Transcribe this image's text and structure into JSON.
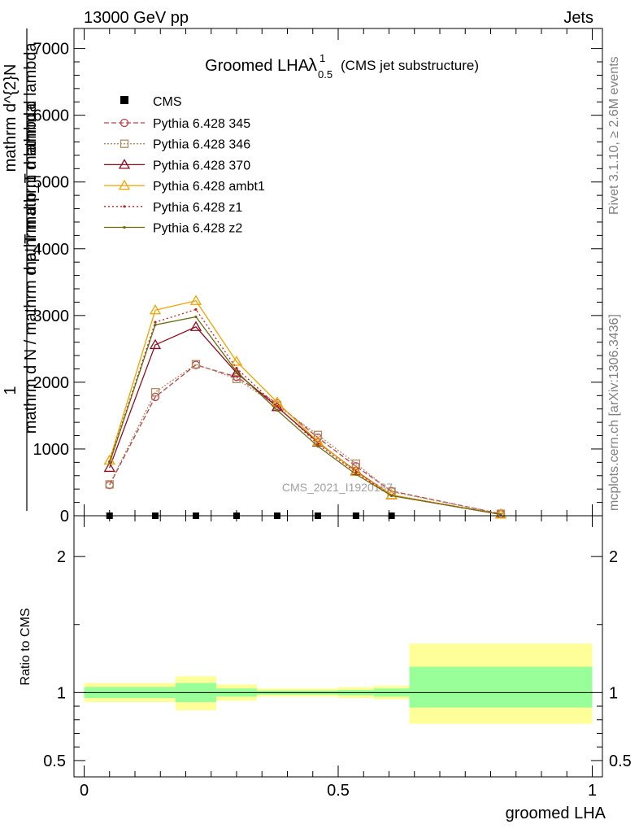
{
  "header": {
    "left": "13000 GeV pp",
    "right": "Jets"
  },
  "side_text": {
    "top": "Rivet 3.1.10, ≥ 2.6M events",
    "bottom": "mcplots.cern.ch [arXiv:1306.3436]"
  },
  "watermark": "CMS_2021_I1920187",
  "chart_data": [
    {
      "type": "line",
      "title": "Groomed LHA",
      "title_symbol": "λ",
      "title_sup": "1",
      "title_sub": "0.5",
      "subtitle": "(CMS jet substructure)",
      "ylabel_numerator": "1",
      "ylabel_line1": "mathrm d N / mathrm d p_T mathrm d lambda",
      "ylabel_line2": "mathrm d^{2}N",
      "ylabel_line3": "mathrm d p_T mathrm d lambda",
      "xlim": [
        0,
        1
      ],
      "ylim": [
        0,
        7300
      ],
      "yticks": [
        0,
        1000,
        2000,
        3000,
        4000,
        5000,
        6000,
        7000
      ],
      "ytick_labels": [
        "0",
        "1000",
        "2000",
        "3000",
        "4000",
        "5000",
        "6000",
        "7000"
      ],
      "data": {
        "name": "CMS",
        "x": [
          0.05,
          0.14,
          0.22,
          0.3,
          0.38,
          0.46,
          0.535,
          0.605
        ],
        "y": [
          0,
          0,
          0,
          0,
          0,
          0,
          0,
          0
        ]
      },
      "series": [
        {
          "name": "Pythia 6.428 345",
          "color": "#b4434b",
          "dash": "6,3",
          "marker": "circle",
          "x": [
            0.05,
            0.14,
            0.22,
            0.3,
            0.38,
            0.46,
            0.535,
            0.605,
            0.82
          ],
          "y": [
            460,
            1780,
            2260,
            2080,
            1680,
            1170,
            740,
            370,
            30
          ]
        },
        {
          "name": "Pythia 6.428 346",
          "color": "#b08a60",
          "dash": "2,2",
          "marker": "square",
          "x": [
            0.05,
            0.14,
            0.22,
            0.3,
            0.38,
            0.46,
            0.535,
            0.605,
            0.82
          ],
          "y": [
            470,
            1850,
            2270,
            2050,
            1650,
            1210,
            780,
            360,
            30
          ]
        },
        {
          "name": "Pythia 6.428 370",
          "color": "#8e0a1e",
          "dash": "",
          "marker": "triangle",
          "x": [
            0.05,
            0.14,
            0.22,
            0.3,
            0.38,
            0.46,
            0.535,
            0.605,
            0.82
          ],
          "y": [
            720,
            2560,
            2830,
            2140,
            1630,
            1100,
            670,
            310,
            20
          ]
        },
        {
          "name": "Pythia 6.428 ambt1",
          "color": "#f0a300",
          "dash": "",
          "marker": "triangle",
          "x": [
            0.05,
            0.14,
            0.22,
            0.3,
            0.38,
            0.46,
            0.535,
            0.605,
            0.82
          ],
          "y": [
            830,
            3080,
            3220,
            2310,
            1700,
            1110,
            660,
            310,
            20
          ]
        },
        {
          "name": "Pythia 6.428 z1",
          "color": "#c31f1f",
          "dash": "2,3",
          "marker": "dot",
          "x": [
            0.05,
            0.14,
            0.22,
            0.3,
            0.38,
            0.46,
            0.535,
            0.605,
            0.82
          ],
          "y": [
            810,
            2900,
            3090,
            2210,
            1640,
            1070,
            650,
            300,
            20
          ]
        },
        {
          "name": "Pythia 6.428 z2",
          "color": "#6b6b10",
          "dash": "",
          "marker": "dot",
          "x": [
            0.05,
            0.14,
            0.22,
            0.3,
            0.38,
            0.46,
            0.535,
            0.605,
            0.82
          ],
          "y": [
            790,
            2860,
            2980,
            2160,
            1580,
            1040,
            620,
            300,
            20
          ]
        }
      ]
    },
    {
      "type": "area",
      "ylabel": "Ratio to CMS",
      "xlabel": "groomed LHA",
      "xlim": [
        -0.02,
        1.02
      ],
      "ylim": [
        0.38,
        2.3
      ],
      "yticks": [
        0.5,
        1,
        2
      ],
      "ytick_labels": [
        "0.5",
        "1",
        "2"
      ],
      "xticks": [
        0,
        0.5,
        1
      ],
      "xtick_labels": [
        "0",
        "0.5",
        "1"
      ],
      "reference_line": 1,
      "bands": [
        {
          "x0": 0.0,
          "x1": 0.18,
          "outer": [
            0.93,
            1.07
          ],
          "inner": [
            0.96,
            1.04
          ]
        },
        {
          "x0": 0.18,
          "x1": 0.26,
          "outer": [
            0.87,
            1.12
          ],
          "inner": [
            0.93,
            1.07
          ]
        },
        {
          "x0": 0.26,
          "x1": 0.34,
          "outer": [
            0.94,
            1.06
          ],
          "inner": [
            0.97,
            1.03
          ]
        },
        {
          "x0": 0.34,
          "x1": 0.5,
          "outer": [
            0.97,
            1.03
          ],
          "inner": [
            0.985,
            1.015
          ]
        },
        {
          "x0": 0.5,
          "x1": 0.57,
          "outer": [
            0.96,
            1.04
          ],
          "inner": [
            0.98,
            1.02
          ]
        },
        {
          "x0": 0.57,
          "x1": 0.64,
          "outer": [
            0.95,
            1.05
          ],
          "inner": [
            0.97,
            1.03
          ]
        },
        {
          "x0": 0.64,
          "x1": 1.0,
          "outer": [
            0.77,
            1.36
          ],
          "inner": [
            0.89,
            1.19
          ]
        }
      ],
      "band_colors": {
        "outer": "#ffff99",
        "inner": "#99ff99"
      }
    }
  ]
}
